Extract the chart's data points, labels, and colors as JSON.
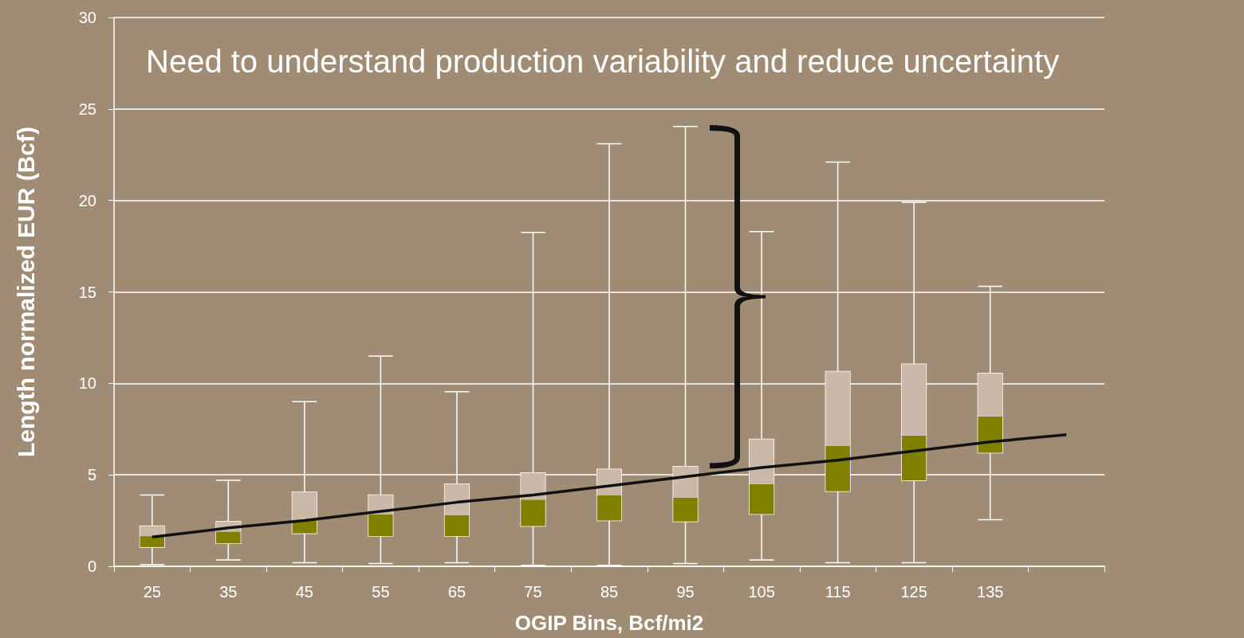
{
  "chart_data": {
    "type": "box",
    "title": "Need to understand production variability and reduce uncertainty",
    "xlabel": "OGIP Bins, Bcf/mi2",
    "ylabel": "Length normalized EUR (Bcf)",
    "categories": [
      "25",
      "35",
      "45",
      "55",
      "65",
      "75",
      "85",
      "95",
      "105",
      "115",
      "125",
      "135",
      null
    ],
    "boxes": [
      {
        "low": 0.1,
        "q1": 1.05,
        "median": 1.65,
        "q3": 2.2,
        "high": 3.9
      },
      {
        "low": 0.35,
        "q1": 1.25,
        "median": 1.9,
        "q3": 2.45,
        "high": 4.7
      },
      {
        "low": 0.2,
        "q1": 1.8,
        "median": 2.55,
        "q3": 4.05,
        "high": 9.0
      },
      {
        "low": 0.15,
        "q1": 1.65,
        "median": 2.85,
        "q3": 3.9,
        "high": 11.5
      },
      {
        "low": 0.2,
        "q1": 1.65,
        "median": 2.8,
        "q3": 4.5,
        "high": 9.55
      },
      {
        "low": 0.05,
        "q1": 2.2,
        "median": 3.65,
        "q3": 5.1,
        "high": 18.25
      },
      {
        "low": 0.05,
        "q1": 2.5,
        "median": 3.9,
        "q3": 5.3,
        "high": 23.1
      },
      {
        "low": 0.15,
        "q1": 2.45,
        "median": 3.75,
        "q3": 5.45,
        "high": 24.05
      },
      {
        "low": 0.35,
        "q1": 2.85,
        "median": 4.5,
        "q3": 6.95,
        "high": 18.3
      },
      {
        "low": 0.2,
        "q1": 4.1,
        "median": 6.6,
        "q3": 10.65,
        "high": 22.1
      },
      {
        "low": 0.2,
        "q1": 4.7,
        "median": 7.15,
        "q3": 11.05,
        "high": 19.9
      },
      {
        "low": 2.55,
        "q1": 6.2,
        "median": 8.2,
        "q3": 10.55,
        "high": 15.3
      },
      null
    ],
    "color": "#7f8000",
    "series": [
      {
        "type": "line",
        "values": [
          1.6,
          2.1,
          2.5,
          3.0,
          3.5,
          3.9,
          4.4,
          4.9,
          5.4,
          5.8,
          6.3,
          6.8,
          7.2
        ],
        "color": "#111111"
      }
    ],
    "ylim": [
      0,
      30
    ],
    "yticks": [
      0,
      5,
      10,
      15,
      20,
      25,
      30
    ],
    "grid": "y"
  }
}
